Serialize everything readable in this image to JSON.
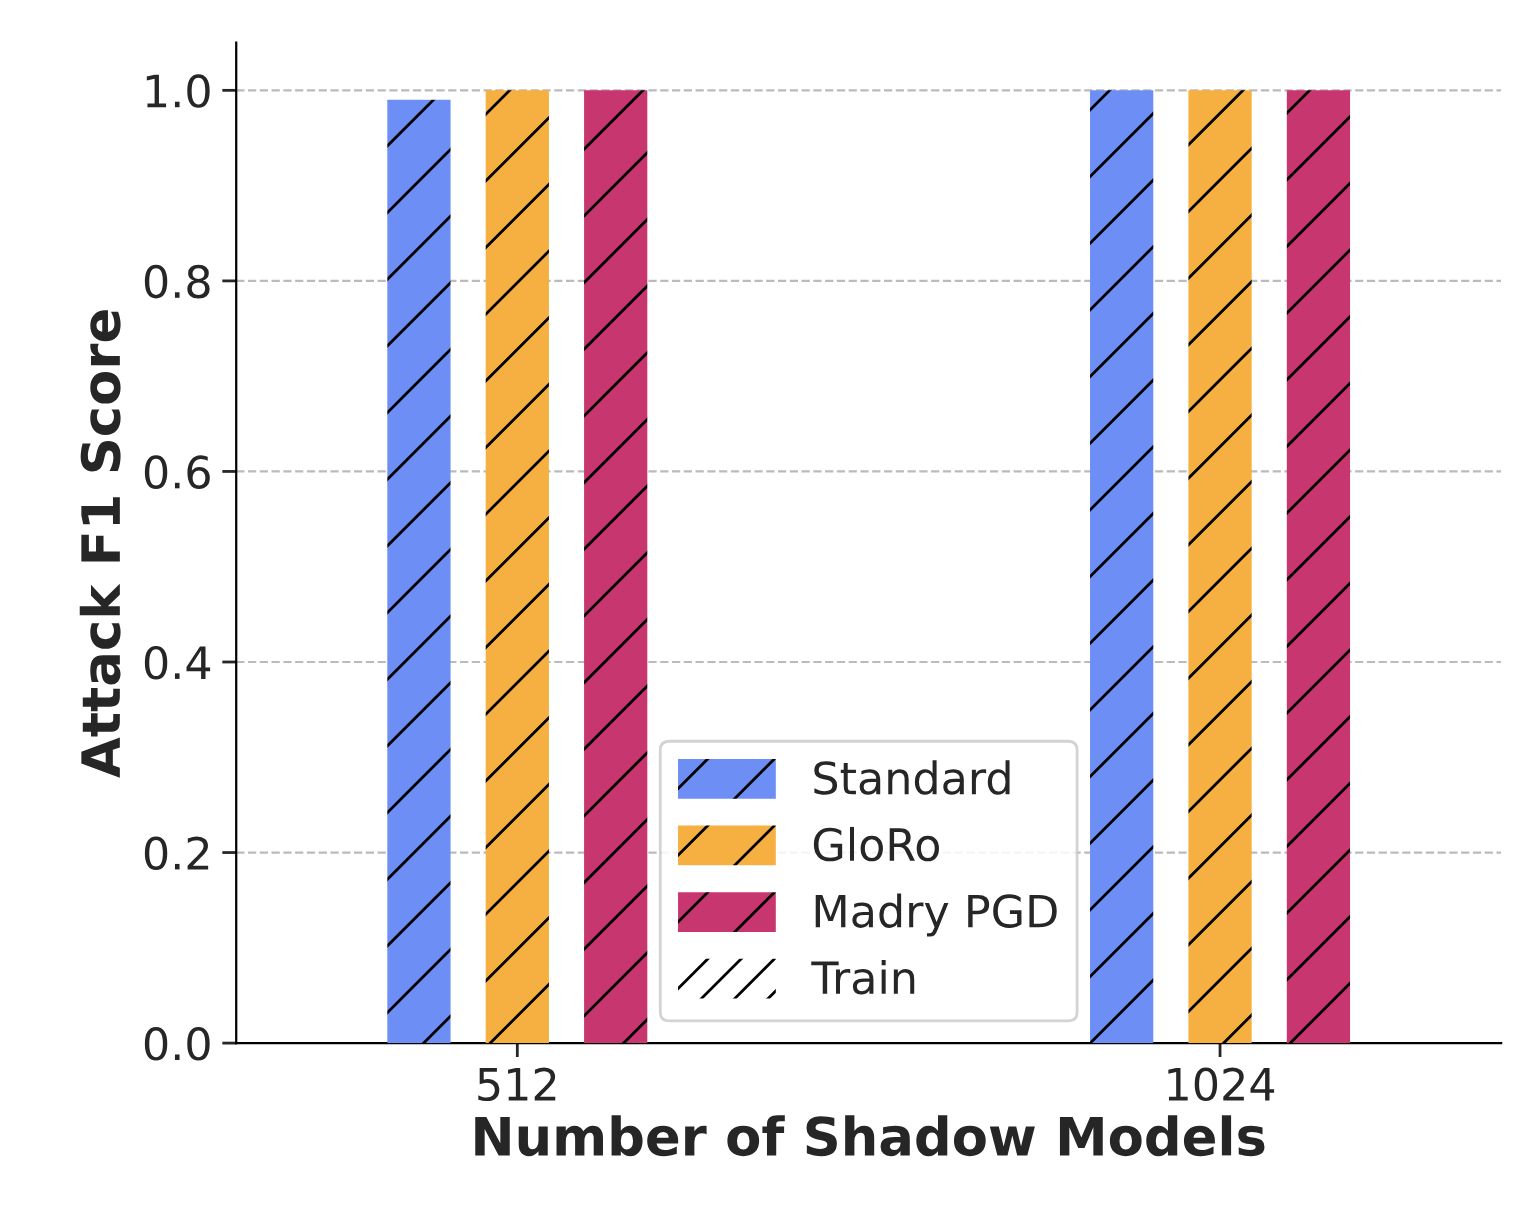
{
  "chart_data": {
    "type": "bar",
    "xlabel": "Number of Shadow Models",
    "ylabel": "Attack F1 Score",
    "categories": [
      "512",
      "1024"
    ],
    "series": [
      {
        "name": "Standard",
        "color": "#6d8ef5",
        "values": [
          0.99,
          1.0
        ]
      },
      {
        "name": "GloRo",
        "color": "#f5b041",
        "values": [
          1.0,
          1.0
        ]
      },
      {
        "name": "Madry PGD",
        "color": "#c8366f",
        "values": [
          1.0,
          1.0
        ]
      }
    ],
    "annotations": [
      "Train"
    ],
    "ylim": [
      0,
      1.05
    ],
    "yticks": [
      {
        "value": 0.0,
        "label": "0.0"
      },
      {
        "value": 0.2,
        "label": "0.2"
      },
      {
        "value": 0.4,
        "label": "0.4"
      },
      {
        "value": 0.6,
        "label": "0.6"
      },
      {
        "value": 0.8,
        "label": "0.8"
      },
      {
        "value": 1.0,
        "label": "1.0"
      }
    ],
    "grid": "y",
    "legend": "bottom"
  }
}
